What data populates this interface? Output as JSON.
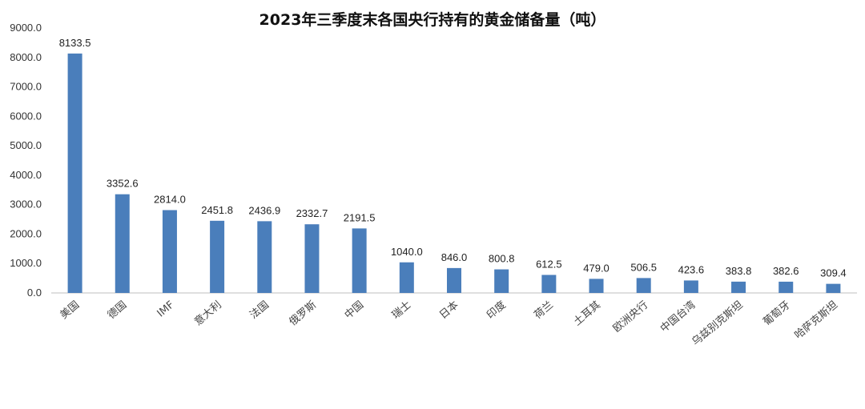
{
  "chart_data": {
    "type": "bar",
    "title": "2023年三季度末各国央行持有的黄金储备量（吨）",
    "categories": [
      "美国",
      "德国",
      "IMF",
      "意大利",
      "法国",
      "俄罗斯",
      "中国",
      "瑞士",
      "日本",
      "印度",
      "荷兰",
      "土耳其",
      "欧洲央行",
      "中国台湾",
      "乌兹别克斯坦",
      "葡萄牙",
      "哈萨克斯坦"
    ],
    "values": [
      8133.5,
      3352.6,
      2814.0,
      2451.8,
      2436.9,
      2332.7,
      2191.5,
      1040.0,
      846.0,
      800.8,
      612.5,
      479.0,
      506.5,
      423.6,
      383.8,
      382.6,
      309.4
    ],
    "data_labels": [
      "8133.5",
      "3352.6",
      "2814.0",
      "2451.8",
      "2436.9",
      "2332.7",
      "2191.5",
      "1040.0",
      "846.0",
      "800.8",
      "612.5",
      "479.0",
      "506.5",
      "423.6",
      "383.8",
      "382.6",
      "309.4"
    ],
    "y_ticks": [
      "0.0",
      "1000.0",
      "2000.0",
      "3000.0",
      "4000.0",
      "5000.0",
      "6000.0",
      "7000.0",
      "8000.0",
      "9000.0"
    ],
    "ylim": [
      0,
      9000
    ],
    "grid": false,
    "legend": "none",
    "bar_color": "#4a7ebb"
  }
}
